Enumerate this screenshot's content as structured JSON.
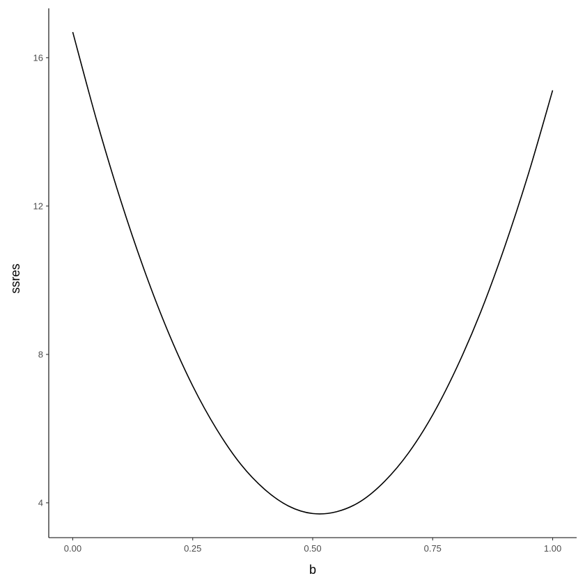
{
  "chart_data": {
    "type": "line",
    "title": "",
    "xlabel": "b",
    "ylabel": "ssres",
    "xlim": [
      -0.05,
      1.05
    ],
    "ylim": [
      3.06,
      17.33
    ],
    "x_ticks": [
      0.0,
      0.25,
      0.5,
      0.75,
      1.0
    ],
    "x_tick_labels": [
      "0.00",
      "0.25",
      "0.50",
      "0.75",
      "1.00"
    ],
    "y_ticks": [
      4,
      8,
      12,
      16
    ],
    "y_tick_labels": [
      "4",
      "8",
      "12",
      "16"
    ],
    "grid": false,
    "line_color": "#000000",
    "series": [
      {
        "x": [
          0.0,
          0.05,
          0.1,
          0.15,
          0.2,
          0.25,
          0.3,
          0.35,
          0.4,
          0.45,
          0.5,
          0.55,
          0.6,
          0.65,
          0.7,
          0.75,
          0.8,
          0.85,
          0.9,
          0.95,
          1.0
        ],
        "y": [
          16.69,
          14.3,
          12.15,
          10.24,
          8.57,
          7.15,
          5.98,
          5.04,
          4.36,
          3.91,
          3.71,
          3.76,
          4.04,
          4.58,
          5.35,
          6.37,
          7.64,
          9.14,
          10.9,
          12.89,
          15.12
        ]
      }
    ]
  }
}
